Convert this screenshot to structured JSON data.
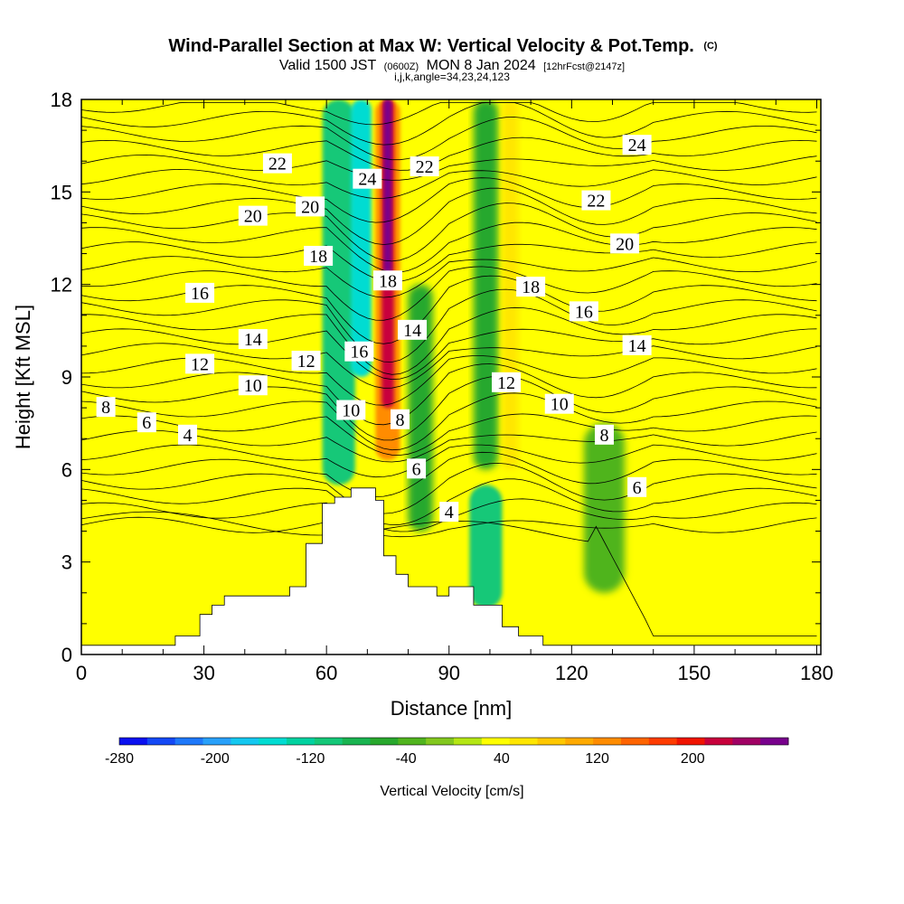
{
  "title": {
    "main": "Wind-Parallel Section at Max W: Vertical Velocity & Pot.Temp.",
    "main_unit": "(C)",
    "valid_a": "Valid 1500 JST",
    "valid_b": "(0600Z)",
    "valid_c": "MON 8 Jan 2024",
    "valid_d": "[12hrFcst@2147z]",
    "params": "i,j,k,angle=34,23,24,123"
  },
  "chart_data": {
    "type": "heatmap",
    "xlabel": "Distance [nm]",
    "ylabel": "Height [Kft MSL]",
    "xlim": [
      0,
      181
    ],
    "ylim": [
      0,
      18
    ],
    "xticks": [
      0,
      30,
      60,
      90,
      120,
      150,
      180
    ],
    "yticks": [
      0,
      3,
      6,
      9,
      12,
      15,
      18
    ],
    "colorbar": {
      "label": "Vertical Velocity [cm/s]",
      "range": [
        -280,
        280
      ],
      "tick_values": [
        -280,
        -200,
        -120,
        -40,
        40,
        120,
        200
      ],
      "tick_labels": [
        "-280",
        "-200",
        "-120",
        "-40",
        "40",
        "120",
        "200"
      ],
      "colors": [
        "#0a10f0",
        "#1448f5",
        "#1e78fa",
        "#28a0fa",
        "#14c8f0",
        "#00dcd2",
        "#00d2a0",
        "#14c878",
        "#19b450",
        "#28a82d",
        "#50b41e",
        "#82c81e",
        "#b4e614",
        "#ffff00",
        "#ffe600",
        "#ffc800",
        "#ffaa00",
        "#ff8c00",
        "#ff6400",
        "#ff3c00",
        "#f01400",
        "#c8003c",
        "#a00064",
        "#78008c"
      ]
    },
    "contour_field": "Potential Temperature (C)",
    "contour_labels": [
      {
        "text": "22",
        "x": 48,
        "y": 15.9
      },
      {
        "text": "20",
        "x": 42,
        "y": 14.2
      },
      {
        "text": "20",
        "x": 56,
        "y": 14.5
      },
      {
        "text": "18",
        "x": 58,
        "y": 12.9
      },
      {
        "text": "24",
        "x": 70,
        "y": 15.4
      },
      {
        "text": "22",
        "x": 84,
        "y": 15.8
      },
      {
        "text": "18",
        "x": 75,
        "y": 12.1
      },
      {
        "text": "16",
        "x": 29,
        "y": 11.7
      },
      {
        "text": "14",
        "x": 42,
        "y": 10.2
      },
      {
        "text": "16",
        "x": 68,
        "y": 9.8
      },
      {
        "text": "14",
        "x": 81,
        "y": 10.5
      },
      {
        "text": "12",
        "x": 29,
        "y": 9.4
      },
      {
        "text": "12",
        "x": 55,
        "y": 9.5
      },
      {
        "text": "10",
        "x": 42,
        "y": 8.7
      },
      {
        "text": "10",
        "x": 66,
        "y": 7.9
      },
      {
        "text": "8",
        "x": 78,
        "y": 7.6
      },
      {
        "text": "8",
        "x": 6,
        "y": 8.0
      },
      {
        "text": "6",
        "x": 16,
        "y": 7.5
      },
      {
        "text": "4",
        "x": 26,
        "y": 7.1
      },
      {
        "text": "6",
        "x": 82,
        "y": 6.0
      },
      {
        "text": "4",
        "x": 90,
        "y": 4.6
      },
      {
        "text": "12",
        "x": 104,
        "y": 8.8
      },
      {
        "text": "10",
        "x": 117,
        "y": 8.1
      },
      {
        "text": "8",
        "x": 128,
        "y": 7.1
      },
      {
        "text": "6",
        "x": 136,
        "y": 5.4
      },
      {
        "text": "18",
        "x": 110,
        "y": 11.9
      },
      {
        "text": "16",
        "x": 123,
        "y": 11.1
      },
      {
        "text": "14",
        "x": 136,
        "y": 10.0
      },
      {
        "text": "20",
        "x": 133,
        "y": 13.3
      },
      {
        "text": "22",
        "x": 126,
        "y": 14.7
      },
      {
        "text": "24",
        "x": 136,
        "y": 16.5
      }
    ],
    "velocity_bands": [
      {
        "x0": 59,
        "x1": 67,
        "y0": 5.5,
        "y1": 18,
        "w": -100
      },
      {
        "x0": 66,
        "x1": 71,
        "y0": 9,
        "y1": 18,
        "w": -150
      },
      {
        "x0": 72,
        "x1": 78,
        "y0": 6.3,
        "y1": 18,
        "w": 120
      },
      {
        "x0": 73.5,
        "x1": 76.5,
        "y0": 8,
        "y1": 18,
        "w": 220
      },
      {
        "x0": 80,
        "x1": 86,
        "y0": 4,
        "y1": 12,
        "w": -60
      },
      {
        "x0": 95,
        "x1": 103,
        "y0": 1.5,
        "y1": 5.5,
        "w": -100
      },
      {
        "x0": 96,
        "x1": 102,
        "y0": 6,
        "y1": 18,
        "w": -50
      },
      {
        "x0": 103,
        "x1": 107,
        "y0": 6,
        "y1": 18,
        "w": 50
      },
      {
        "x0": 123,
        "x1": 133,
        "y0": 2,
        "y1": 7.5,
        "w": -45
      },
      {
        "x0": 10,
        "x1": 24,
        "y0": 0.5,
        "y1": 7,
        "w": 25
      },
      {
        "x0": 44,
        "x1": 50,
        "y0": 2.5,
        "y1": 18,
        "w": 25
      },
      {
        "x0": 158,
        "x1": 181,
        "y0": 0.5,
        "y1": 6,
        "w": 28
      }
    ],
    "terrain": [
      [
        0,
        0.3
      ],
      [
        23,
        0.3
      ],
      [
        23,
        0.6
      ],
      [
        29,
        0.6
      ],
      [
        29,
        1.3
      ],
      [
        32,
        1.3
      ],
      [
        32,
        1.6
      ],
      [
        35,
        1.6
      ],
      [
        35,
        1.9
      ],
      [
        51,
        1.9
      ],
      [
        51,
        2.2
      ],
      [
        55,
        2.2
      ],
      [
        55,
        3.6
      ],
      [
        59,
        3.6
      ],
      [
        59,
        4.9
      ],
      [
        62,
        4.9
      ],
      [
        62,
        5.1
      ],
      [
        66,
        5.1
      ],
      [
        66,
        5.4
      ],
      [
        72,
        5.4
      ],
      [
        72,
        5.0
      ],
      [
        74,
        5.0
      ],
      [
        74,
        3.2
      ],
      [
        77,
        3.2
      ],
      [
        77,
        2.6
      ],
      [
        80,
        2.6
      ],
      [
        80,
        2.2
      ],
      [
        87,
        2.2
      ],
      [
        87,
        1.9
      ],
      [
        90,
        1.9
      ],
      [
        90,
        2.2
      ],
      [
        96,
        2.2
      ],
      [
        96,
        1.6
      ],
      [
        103,
        1.6
      ],
      [
        103,
        0.9
      ],
      [
        107,
        0.9
      ],
      [
        107,
        0.6
      ],
      [
        113,
        0.6
      ],
      [
        113,
        0.3
      ],
      [
        181,
        0.3
      ]
    ]
  }
}
